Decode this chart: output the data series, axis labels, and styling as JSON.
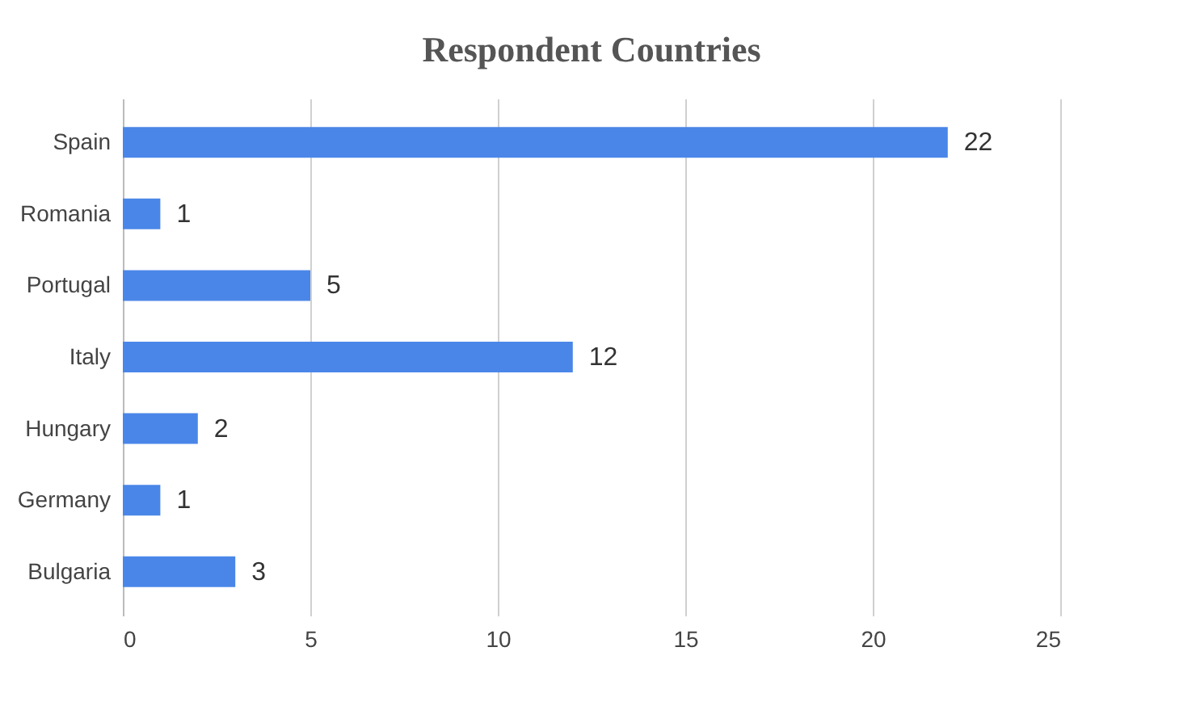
{
  "chart_data": {
    "type": "bar",
    "orientation": "horizontal",
    "title": "Respondent Countries",
    "categories": [
      "Spain",
      "Romania",
      "Portugal",
      "Italy",
      "Hungary",
      "Germany",
      "Bulgaria"
    ],
    "values": [
      22,
      1,
      5,
      12,
      2,
      1,
      3
    ],
    "color": "#4a86e8",
    "xlim": [
      0,
      25
    ],
    "xticks": [
      0,
      5,
      10,
      15,
      20,
      25
    ],
    "grid": "x",
    "data_labels": true
  }
}
